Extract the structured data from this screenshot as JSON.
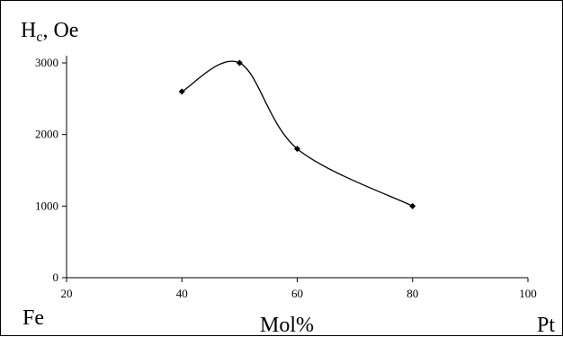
{
  "chart_data": {
    "type": "line",
    "title": "",
    "ylabel_main": "H",
    "ylabel_sub": "c",
    "ylabel_rest": ", Oe",
    "xlabel": "Mol%",
    "x_left_label": "Fe",
    "x_right_label": "Pt",
    "xlim": [
      20,
      100
    ],
    "ylim": [
      0,
      3000
    ],
    "x_ticks": [
      20,
      40,
      60,
      80,
      100
    ],
    "y_ticks": [
      0,
      1000,
      2000,
      3000
    ],
    "grid": false,
    "smooth": true,
    "series": [
      {
        "x": [
          40,
          50,
          60,
          80
        ],
        "y": [
          2600,
          3000,
          1800,
          1000
        ],
        "color": "#000000",
        "marker": "diamond"
      }
    ]
  }
}
